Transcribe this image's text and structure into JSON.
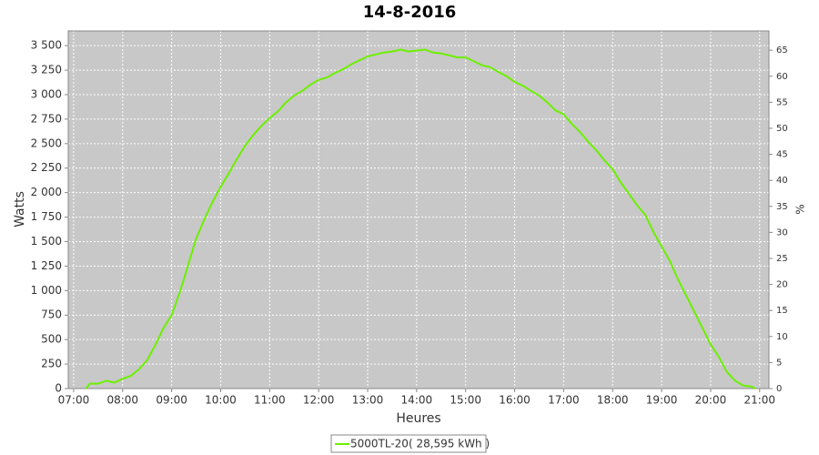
{
  "chart_data": {
    "type": "line",
    "title": "14-8-2016",
    "x_label": "Heures",
    "y_label": "Watts",
    "y2_label": "%",
    "x": [
      7.25,
      7.33,
      7.5,
      7.67,
      7.83,
      8,
      8.17,
      8.33,
      8.5,
      8.67,
      8.83,
      9,
      9.17,
      9.33,
      9.5,
      9.67,
      9.83,
      10,
      10.17,
      10.33,
      10.5,
      10.67,
      10.83,
      11,
      11.17,
      11.33,
      11.5,
      11.67,
      11.83,
      12,
      12.17,
      12.33,
      12.5,
      12.67,
      12.83,
      13,
      13.17,
      13.33,
      13.5,
      13.67,
      13.83,
      14,
      14.17,
      14.33,
      14.5,
      14.67,
      14.83,
      15,
      15.17,
      15.33,
      15.5,
      15.67,
      15.83,
      16,
      16.17,
      16.33,
      16.5,
      16.67,
      16.83,
      17,
      17.17,
      17.33,
      17.5,
      17.67,
      17.83,
      18,
      18.17,
      18.33,
      18.5,
      18.67,
      18.83,
      19,
      19.17,
      19.33,
      19.5,
      19.67,
      19.83,
      20,
      20.17,
      20.33,
      20.5,
      20.67,
      20.83,
      20.92
    ],
    "series": [
      {
        "name": "5000TL-20( 28,595 kWh )",
        "color": "#6cf000",
        "values": [
          0,
          50,
          50,
          80,
          60,
          100,
          130,
          195,
          290,
          447,
          615,
          750,
          990,
          1250,
          1530,
          1730,
          1900,
          2060,
          2200,
          2340,
          2480,
          2590,
          2680,
          2760,
          2830,
          2920,
          2990,
          3040,
          3100,
          3150,
          3175,
          3220,
          3260,
          3310,
          3350,
          3390,
          3410,
          3430,
          3440,
          3460,
          3440,
          3450,
          3460,
          3430,
          3420,
          3400,
          3380,
          3380,
          3340,
          3300,
          3280,
          3230,
          3190,
          3130,
          3090,
          3040,
          2990,
          2920,
          2840,
          2800,
          2700,
          2620,
          2520,
          2430,
          2330,
          2240,
          2100,
          1990,
          1870,
          1770,
          1600,
          1450,
          1300,
          1120,
          950,
          780,
          620,
          450,
          320,
          170,
          80,
          30,
          20,
          0
        ]
      }
    ],
    "xlim": [
      6.89,
      21.19
    ],
    "xticks": [
      {
        "value": 7,
        "label": "07:00"
      },
      {
        "value": 8,
        "label": "08:00"
      },
      {
        "value": 9,
        "label": "09:00"
      },
      {
        "value": 10,
        "label": "10:00"
      },
      {
        "value": 11,
        "label": "11:00"
      },
      {
        "value": 12,
        "label": "12:00"
      },
      {
        "value": 13,
        "label": "13:00"
      },
      {
        "value": 14,
        "label": "14:00"
      },
      {
        "value": 15,
        "label": "15:00"
      },
      {
        "value": 16,
        "label": "16:00"
      },
      {
        "value": 17,
        "label": "17:00"
      },
      {
        "value": 18,
        "label": "18:00"
      },
      {
        "value": 19,
        "label": "19:00"
      },
      {
        "value": 20,
        "label": "20:00"
      },
      {
        "value": 21,
        "label": "21:00"
      }
    ],
    "ylim": [
      0,
      3650
    ],
    "yticks": [
      0,
      250,
      500,
      750,
      {
        "value": 1000,
        "label": "1 000"
      },
      {
        "value": 1250,
        "label": "1 250"
      },
      {
        "value": 1500,
        "label": "1 500"
      },
      {
        "value": 1750,
        "label": "1 750"
      },
      {
        "value": 2000,
        "label": "2 000"
      },
      {
        "value": 2250,
        "label": "2 250"
      },
      {
        "value": 2500,
        "label": "2 500"
      },
      {
        "value": 2750,
        "label": "2 750"
      },
      {
        "value": 3000,
        "label": "3 000"
      },
      {
        "value": 3250,
        "label": "3 250"
      },
      {
        "value": 3500,
        "label": "3 500"
      }
    ],
    "y2lim": [
      0,
      68.7
    ],
    "y2ticks": [
      0,
      5,
      10,
      15,
      20,
      25,
      30,
      35,
      40,
      45,
      50,
      55,
      60,
      65
    ],
    "grid": true
  }
}
